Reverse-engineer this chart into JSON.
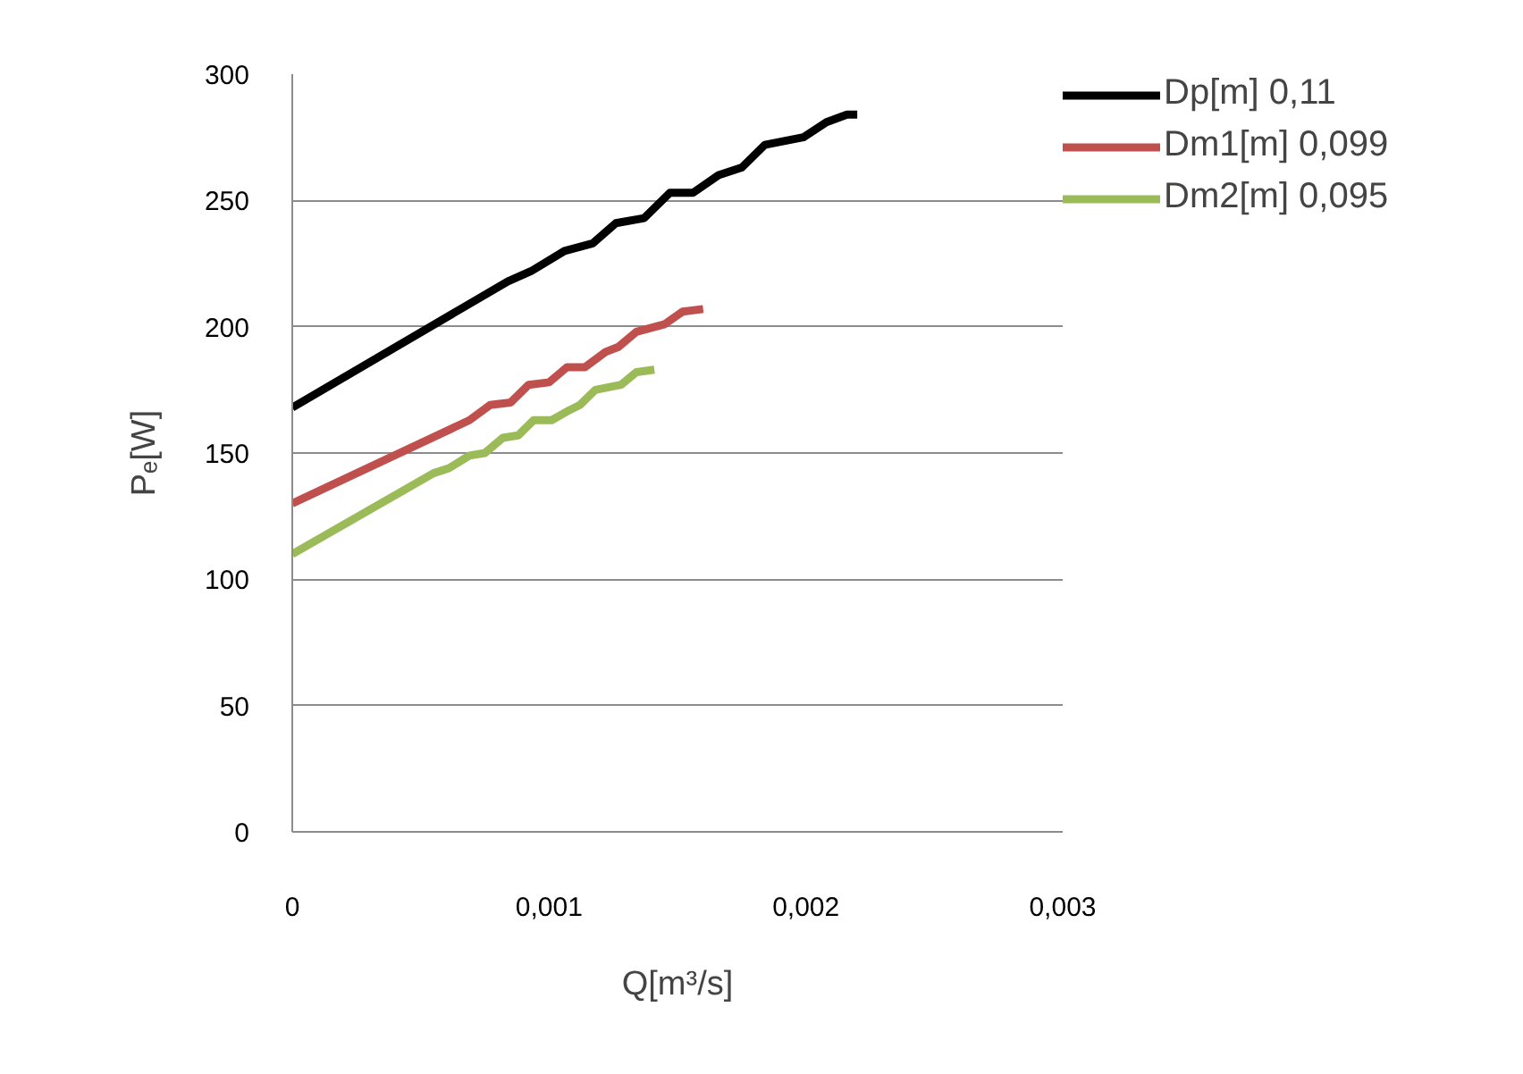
{
  "chart_data": {
    "type": "line",
    "xlabel": "Q[m³/s]",
    "ylabel": "Pₑ[W]",
    "xlim": [
      0,
      0.003
    ],
    "xticks": [
      0,
      {
        "value": 0.001,
        "label": "0,001"
      },
      {
        "value": 0.002,
        "label": "0,002"
      },
      {
        "value": 0.003,
        "label": "0,003"
      }
    ],
    "ylim": [
      0,
      300
    ],
    "yticks": [
      0,
      50,
      100,
      150,
      200,
      250,
      300
    ],
    "grid": "y",
    "legend": "right",
    "marker": "none",
    "line_style": "solid",
    "series": [
      {
        "name": "Dp[m] 0,11",
        "color": "#000000",
        "x": [
          0,
          0.00084,
          0.00093,
          0.00106,
          0.00117,
          0.00126,
          0.00137,
          0.00147,
          0.00156,
          0.00166,
          0.00175,
          0.00184,
          0.00199,
          0.00208,
          0.00216,
          0.0022
        ],
        "values": [
          168,
          218,
          222,
          230,
          233,
          241,
          243,
          253,
          253,
          260,
          263,
          272,
          275,
          281,
          284,
          284
        ]
      },
      {
        "name": "Dm1[m] 0,099",
        "color": "#c0504d",
        "x": [
          0,
          0.00069,
          0.00077,
          0.00085,
          0.00092,
          0.001,
          0.00107,
          0.00114,
          0.00122,
          0.00127,
          0.00134,
          0.00145,
          0.00152,
          0.0016
        ],
        "values": [
          130,
          163,
          169,
          170,
          177,
          178,
          184,
          184,
          190,
          192,
          198,
          201,
          206,
          207
        ]
      },
      {
        "name": "Dm2[m] 0,095",
        "color": "#9bbb59",
        "x": [
          0,
          0.00055,
          0.00061,
          0.00069,
          0.00075,
          0.00082,
          0.00088,
          0.00094,
          0.00101,
          0.00108,
          0.00112,
          0.00118,
          0.00128,
          0.00134,
          0.00141
        ],
        "values": [
          110,
          142,
          144,
          149,
          150,
          156,
          157,
          163,
          163,
          167,
          169,
          175,
          177,
          182,
          183
        ]
      }
    ]
  }
}
